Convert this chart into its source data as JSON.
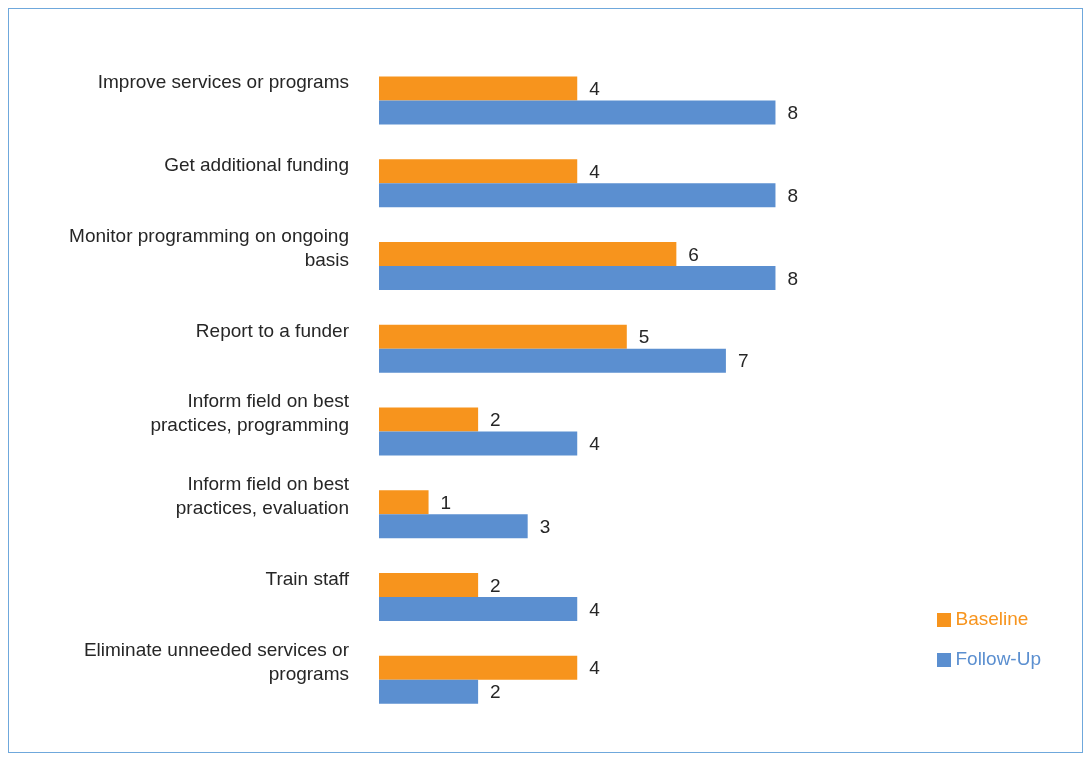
{
  "chart_data": {
    "type": "bar",
    "orientation": "horizontal",
    "categories": [
      "Improve services or programs",
      "Get additional funding",
      "Monitor programming on ongoing basis",
      "Report to a funder",
      "Inform field on best practices, programming",
      "Inform field on best practices, evaluation",
      "Train staff",
      "Eliminate unneeded services or programs"
    ],
    "series": [
      {
        "name": "Baseline",
        "color": "#f7941d",
        "values": [
          4,
          4,
          6,
          5,
          2,
          1,
          2,
          4
        ]
      },
      {
        "name": "Follow-Up",
        "color": "#5b8fd0",
        "values": [
          8,
          8,
          8,
          7,
          4,
          3,
          4,
          2
        ]
      }
    ],
    "data_labels": true,
    "legend": "right",
    "grid": false
  }
}
